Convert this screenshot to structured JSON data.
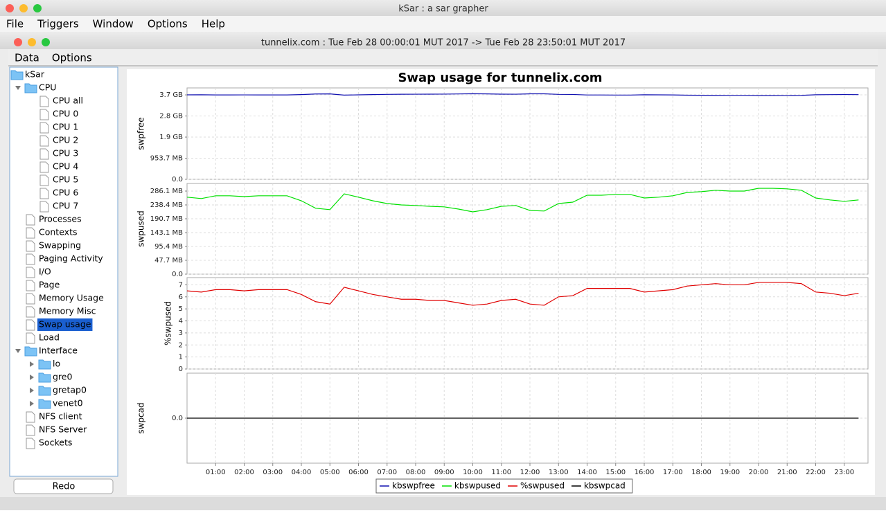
{
  "app": {
    "title": "kSar : a sar grapher",
    "menu": [
      "File",
      "Triggers",
      "Window",
      "Options",
      "Help"
    ]
  },
  "document": {
    "title": "tunnelix.com : Tue Feb 28 00:00:01 MUT 2017 -> Tue Feb 28 23:50:01 MUT 2017",
    "menu": [
      "Data",
      "Options"
    ]
  },
  "tree": {
    "label": "kSar",
    "children": [
      {
        "label": "CPU",
        "children": [
          {
            "label": "CPU all"
          },
          {
            "label": "CPU 0"
          },
          {
            "label": "CPU 1"
          },
          {
            "label": "CPU 2"
          },
          {
            "label": "CPU 3"
          },
          {
            "label": "CPU 4"
          },
          {
            "label": "CPU 5"
          },
          {
            "label": "CPU 6"
          },
          {
            "label": "CPU 7"
          }
        ]
      },
      {
        "label": "Processes"
      },
      {
        "label": "Contexts"
      },
      {
        "label": "Swapping"
      },
      {
        "label": "Paging Activity"
      },
      {
        "label": "I/O"
      },
      {
        "label": "Page"
      },
      {
        "label": "Memory Usage"
      },
      {
        "label": "Memory Misc"
      },
      {
        "label": "Swap usage",
        "selected": true
      },
      {
        "label": "Load"
      },
      {
        "label": "Interface",
        "children": [
          {
            "label": "lo",
            "collapsed": true
          },
          {
            "label": "gre0",
            "collapsed": true
          },
          {
            "label": "gretap0",
            "collapsed": true
          },
          {
            "label": "venet0",
            "collapsed": true
          }
        ]
      },
      {
        "label": "NFS client"
      },
      {
        "label": "NFS Server"
      },
      {
        "label": "Sockets"
      }
    ]
  },
  "redo_button": "Redo",
  "chart_data": [
    {
      "type": "line",
      "title": "Swap usage for tunnelix.com",
      "ylabel": "swpfree",
      "grid": true,
      "ylim": [
        0,
        4330000000
      ],
      "yticks": [
        {
          "value": 0,
          "label": "0.0"
        },
        {
          "value": 1000000000,
          "label": "953.7 MB"
        },
        {
          "value": 2000000000,
          "label": "1.9 GB"
        },
        {
          "value": 3000000000,
          "label": "2.8 GB"
        },
        {
          "value": 4000000000,
          "label": "3.7 GB"
        }
      ],
      "series": [
        {
          "name": "kbswpfree",
          "color": "#1010b0",
          "values": [
            4002000000,
            4007000000,
            3997000000,
            3997000000,
            4000000000,
            3997000000,
            3997000000,
            3997000000,
            4015000000,
            4042000000,
            4047000000,
            3990000000,
            4002000000,
            4015000000,
            4025000000,
            4030000000,
            4032000000,
            4035000000,
            4037000000,
            4045000000,
            4055000000,
            4047000000,
            4035000000,
            4032000000,
            4050000000,
            4052000000,
            4025000000,
            4020000000,
            3995000000,
            3995000000,
            3992000000,
            3992000000,
            4005000000,
            4002000000,
            3997000000,
            3985000000,
            3982000000,
            3977000000,
            3980000000,
            3980000000,
            3970000000,
            3970000000,
            3972000000,
            3977000000,
            4005000000,
            4012000000,
            4017000000,
            4012000000
          ]
        }
      ]
    },
    {
      "type": "line",
      "ylabel": "swpused",
      "grid": true,
      "ylim": [
        0,
        327500000
      ],
      "yticks": [
        {
          "value": 0,
          "label": "0.0"
        },
        {
          "value": 50000000,
          "label": "47.7 MB"
        },
        {
          "value": 100000000,
          "label": "95.4 MB"
        },
        {
          "value": 150000000,
          "label": "143.1 MB"
        },
        {
          "value": 200000000,
          "label": "190.7 MB"
        },
        {
          "value": 250000000,
          "label": "238.4 MB"
        },
        {
          "value": 300000000,
          "label": "286.1 MB"
        }
      ],
      "series": [
        {
          "name": "kbswpused",
          "color": "#00e000",
          "values": [
            278000000,
            273000000,
            283000000,
            283000000,
            280000000,
            283000000,
            283000000,
            283000000,
            265000000,
            238000000,
            233000000,
            290000000,
            278000000,
            265000000,
            255000000,
            250000000,
            248000000,
            245000000,
            243000000,
            235000000,
            225000000,
            233000000,
            245000000,
            248000000,
            230000000,
            228000000,
            255000000,
            260000000,
            285000000,
            285000000,
            288000000,
            288000000,
            275000000,
            278000000,
            283000000,
            295000000,
            298000000,
            303000000,
            300000000,
            300000000,
            310000000,
            310000000,
            308000000,
            303000000,
            275000000,
            268000000,
            263000000,
            268000000
          ]
        }
      ]
    },
    {
      "type": "line",
      "ylabel": "%swpused",
      "grid": true,
      "ylim": [
        0,
        7.6
      ],
      "yticks": [
        0,
        1,
        2,
        3,
        4,
        5,
        6,
        7
      ],
      "series": [
        {
          "name": "%swpused",
          "color": "#e00000",
          "values": [
            6.5,
            6.4,
            6.6,
            6.6,
            6.5,
            6.6,
            6.6,
            6.6,
            6.2,
            5.6,
            5.4,
            6.8,
            6.5,
            6.2,
            6.0,
            5.8,
            5.8,
            5.7,
            5.7,
            5.5,
            5.3,
            5.4,
            5.7,
            5.8,
            5.4,
            5.3,
            6.0,
            6.1,
            6.7,
            6.7,
            6.7,
            6.7,
            6.4,
            6.5,
            6.6,
            6.9,
            7.0,
            7.1,
            7.0,
            7.0,
            7.2,
            7.2,
            7.2,
            7.1,
            6.4,
            6.3,
            6.1,
            6.3
          ]
        }
      ]
    },
    {
      "type": "line",
      "ylabel": "swpcad",
      "grid": true,
      "ylim": [
        -1,
        1
      ],
      "yticks": [
        {
          "value": 0,
          "label": "0.0"
        }
      ],
      "xlim": [
        0,
        23.83
      ],
      "x": [
        0,
        0.5,
        1,
        1.5,
        2,
        2.5,
        3,
        3.5,
        4,
        4.5,
        5,
        5.5,
        6,
        6.5,
        7,
        7.5,
        8,
        8.5,
        9,
        9.5,
        10,
        10.5,
        11,
        11.5,
        12,
        12.5,
        13,
        13.5,
        14,
        14.5,
        15,
        15.5,
        16,
        16.5,
        17,
        17.5,
        18,
        18.5,
        19,
        19.5,
        20,
        20.5,
        21,
        21.5,
        22,
        22.5,
        23,
        23.5
      ],
      "xticks": [
        {
          "value": 1,
          "label": "01:00"
        },
        {
          "value": 2,
          "label": "02:00"
        },
        {
          "value": 3,
          "label": "03:00"
        },
        {
          "value": 4,
          "label": "04:00"
        },
        {
          "value": 5,
          "label": "05:00"
        },
        {
          "value": 6,
          "label": "06:00"
        },
        {
          "value": 7,
          "label": "07:00"
        },
        {
          "value": 8,
          "label": "08:00"
        },
        {
          "value": 9,
          "label": "09:00"
        },
        {
          "value": 10,
          "label": "10:00"
        },
        {
          "value": 11,
          "label": "11:00"
        },
        {
          "value": 12,
          "label": "12:00"
        },
        {
          "value": 13,
          "label": "13:00"
        },
        {
          "value": 14,
          "label": "14:00"
        },
        {
          "value": 15,
          "label": "15:00"
        },
        {
          "value": 16,
          "label": "16:00"
        },
        {
          "value": 17,
          "label": "17:00"
        },
        {
          "value": 18,
          "label": "18:00"
        },
        {
          "value": 19,
          "label": "19:00"
        },
        {
          "value": 20,
          "label": "20:00"
        },
        {
          "value": 21,
          "label": "21:00"
        },
        {
          "value": 22,
          "label": "22:00"
        },
        {
          "value": 23,
          "label": "23:00"
        }
      ],
      "series": [
        {
          "name": "kbswpcad",
          "color": "#000000",
          "values": [
            0,
            0,
            0,
            0,
            0,
            0,
            0,
            0,
            0,
            0,
            0,
            0,
            0,
            0,
            0,
            0,
            0,
            0,
            0,
            0,
            0,
            0,
            0,
            0,
            0,
            0,
            0,
            0,
            0,
            0,
            0,
            0,
            0,
            0,
            0,
            0,
            0,
            0,
            0,
            0,
            0,
            0,
            0,
            0,
            0,
            0,
            0,
            0
          ]
        }
      ]
    }
  ]
}
